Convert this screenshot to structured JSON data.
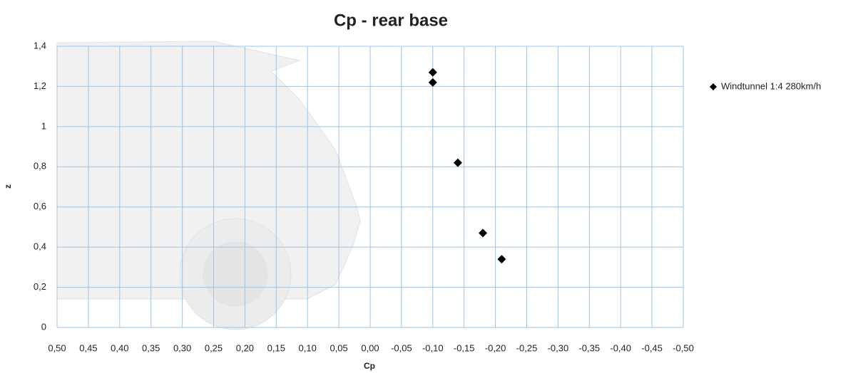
{
  "chart_data": {
    "type": "scatter",
    "title": "Cp - rear base",
    "x_label": "Cp",
    "y_label": "z",
    "series": [
      {
        "name": "Windtunnel 1:4 280km/h",
        "color": "#000000",
        "x": [
          -0.1,
          -0.1,
          -0.14,
          -0.18,
          -0.21
        ],
        "values": [
          1.27,
          1.22,
          0.82,
          0.47,
          0.34
        ]
      }
    ],
    "xlim": [
      0.5,
      -0.5
    ],
    "xticks": [
      {
        "value": 0.5,
        "label": "0,50"
      },
      {
        "value": 0.45,
        "label": "0,45"
      },
      {
        "value": 0.4,
        "label": "0,40"
      },
      {
        "value": 0.35,
        "label": "0,35"
      },
      {
        "value": 0.3,
        "label": "0,30"
      },
      {
        "value": 0.25,
        "label": "0,25"
      },
      {
        "value": 0.2,
        "label": "0,20"
      },
      {
        "value": 0.15,
        "label": "0,15"
      },
      {
        "value": 0.1,
        "label": "0,10"
      },
      {
        "value": 0.05,
        "label": "0,05"
      },
      {
        "value": 0,
        "label": "0,00"
      },
      {
        "value": -0.05,
        "label": "-0,05"
      },
      {
        "value": -0.1,
        "label": "-0,10"
      },
      {
        "value": -0.15,
        "label": "-0,15"
      },
      {
        "value": -0.2,
        "label": "-0,20"
      },
      {
        "value": -0.25,
        "label": "-0,25"
      },
      {
        "value": -0.3,
        "label": "-0,30"
      },
      {
        "value": -0.35,
        "label": "-0,35"
      },
      {
        "value": -0.4,
        "label": "-0,40"
      },
      {
        "value": -0.45,
        "label": "-0,45"
      },
      {
        "value": -0.5,
        "label": "-0,50"
      }
    ],
    "ylim": [
      0,
      1.4
    ],
    "yticks": [
      0,
      {
        "value": 0.2,
        "label": "0,2"
      },
      {
        "value": 0.4,
        "label": "0,4"
      },
      {
        "value": 0.6,
        "label": "0,6"
      },
      {
        "value": 0.8,
        "label": "0,8"
      },
      1,
      {
        "value": 1.2,
        "label": "1,2"
      },
      {
        "value": 1.4,
        "label": "1,4"
      }
    ],
    "grid": true,
    "legend": "right"
  }
}
